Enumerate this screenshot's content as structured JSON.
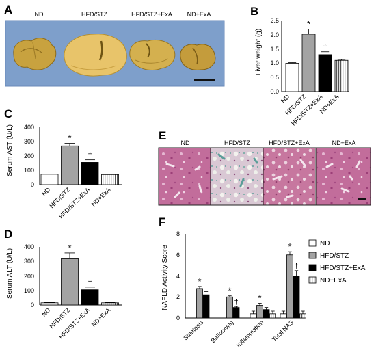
{
  "panels": {
    "A": {
      "letter": "A",
      "group_labels": [
        "ND",
        "HFD/STZ",
        "HFD/STZ+ExA",
        "ND+ExA"
      ]
    },
    "E": {
      "letter": "E",
      "group_labels": [
        "ND",
        "HFD/STZ",
        "HFD/STZ+ExA",
        "ND+ExA"
      ]
    }
  },
  "chart_data": [
    {
      "id": "B",
      "letter": "B",
      "type": "bar",
      "ylabel": "Liver weight (g)",
      "ylim": [
        0,
        2.5
      ],
      "yticks": [
        "0.0",
        "0.5",
        "1.0",
        "1.5",
        "2.0",
        "2.5"
      ],
      "categories": [
        "ND",
        "HFD/STZ",
        "HFD/STZ+ExA",
        "ND+ExA"
      ],
      "values": [
        1.0,
        2.02,
        1.3,
        1.1
      ],
      "errors": [
        0.02,
        0.18,
        0.1,
        0.03
      ],
      "marks": [
        "",
        "*",
        "†",
        ""
      ]
    },
    {
      "id": "C",
      "letter": "C",
      "type": "bar",
      "ylabel": "Serum AST (U/L)",
      "ylim": [
        0,
        400
      ],
      "yticks": [
        "0",
        "100",
        "200",
        "300",
        "400"
      ],
      "categories": [
        "ND",
        "HFD/STZ",
        "HFD/STZ+ExA",
        "ND+ExA"
      ],
      "values": [
        72,
        270,
        155,
        70
      ],
      "errors": [
        2,
        18,
        18,
        3
      ],
      "marks": [
        "",
        "*",
        "†",
        ""
      ]
    },
    {
      "id": "D",
      "letter": "D",
      "type": "bar",
      "ylabel": "Serum ALT (U/L)",
      "ylim": [
        0,
        400
      ],
      "yticks": [
        "0",
        "100",
        "200",
        "300",
        "400"
      ],
      "categories": [
        "ND",
        "HFD/STZ",
        "HFD/STZ+ExA",
        "ND+ExA"
      ],
      "values": [
        15,
        318,
        105,
        15
      ],
      "errors": [
        2,
        40,
        18,
        2
      ],
      "marks": [
        "",
        "*",
        "†",
        ""
      ]
    },
    {
      "id": "F",
      "letter": "F",
      "type": "bar",
      "ylabel": "NAFLD Activity Score",
      "ylim": [
        0,
        8
      ],
      "yticks": [
        "0",
        "2",
        "4",
        "6",
        "8"
      ],
      "categories": [
        "Steatosis",
        "Ballooning",
        "Inflammation",
        "Total NAS"
      ],
      "legend": "right",
      "series": [
        {
          "name": "ND",
          "values": [
            0,
            0,
            0.4,
            0.4
          ],
          "errors": [
            0,
            0,
            0.25,
            0.25
          ]
        },
        {
          "name": "HFD/STZ",
          "values": [
            2.8,
            2.0,
            1.2,
            6.0
          ],
          "errors": [
            0.2,
            0.1,
            0.2,
            0.3
          ]
        },
        {
          "name": "HFD/STZ+ExA",
          "values": [
            2.2,
            1.0,
            0.8,
            4.0
          ],
          "errors": [
            0.3,
            0.1,
            0.2,
            0.5
          ]
        },
        {
          "name": "ND+ExA",
          "values": [
            0,
            0,
            0.4,
            0.4
          ],
          "errors": [
            0,
            0,
            0.25,
            0.25
          ]
        }
      ],
      "marks": [
        [
          "",
          "*",
          "",
          ""
        ],
        [
          "",
          "*",
          "†",
          ""
        ],
        [
          "",
          "*",
          "",
          ""
        ],
        [
          "",
          "*",
          "†",
          ""
        ]
      ]
    }
  ]
}
